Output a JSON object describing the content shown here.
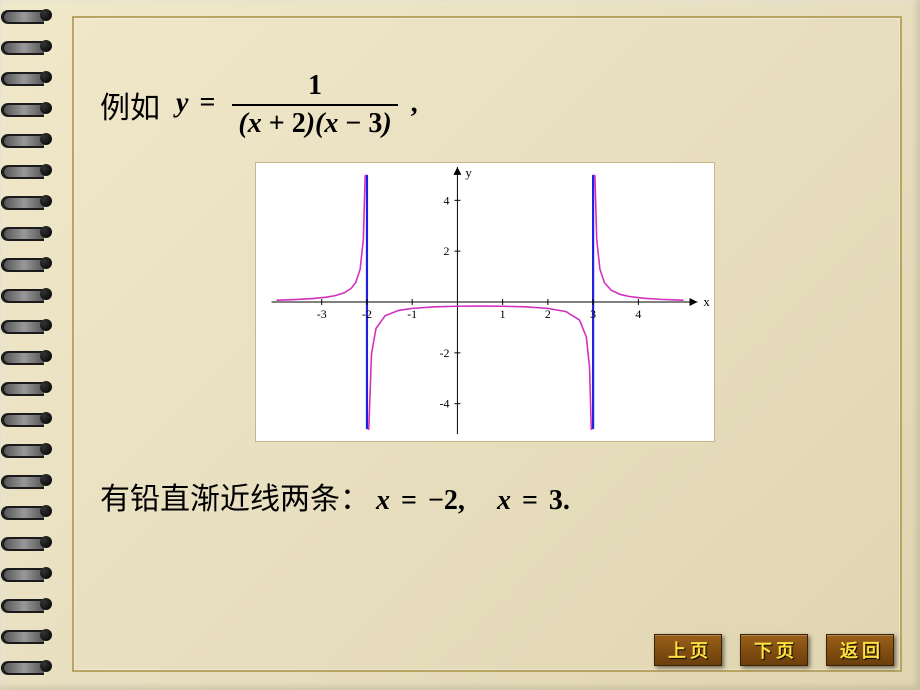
{
  "header": {
    "example_label": "例如",
    "lhs": "y",
    "eq": "=",
    "numerator": "1",
    "den_a_var": "x",
    "den_a_op": "+",
    "den_a_num": "2",
    "den_b_var": "x",
    "den_b_op": "−",
    "den_b_num": "3",
    "trail": ","
  },
  "chart": {
    "type": "line",
    "background_color": "#ffffff",
    "axis_color": "#000000",
    "tick_color": "#000000",
    "curve_color": "#d030c0",
    "asymptote_color": "#2020e0",
    "x_label": "x",
    "y_label": "y",
    "xlim": [
      -4,
      5
    ],
    "ylim": [
      -5,
      5
    ],
    "xticks": [
      -3,
      -2,
      -1,
      1,
      2,
      3,
      4
    ],
    "yticks": [
      -4,
      -2,
      2,
      4
    ],
    "asymptotes_x": [
      -2,
      3
    ],
    "label_fontsize": 13,
    "tick_fontsize": 12,
    "line_width": 1.6,
    "asymptote_width": 2.2,
    "left_branch": [
      [
        -4.0,
        0.0714
      ],
      [
        -3.6,
        0.0947
      ],
      [
        -3.2,
        0.1344
      ],
      [
        -2.9,
        0.1883
      ],
      [
        -2.7,
        0.2506
      ],
      [
        -2.5,
        0.3636
      ],
      [
        -2.35,
        0.5333
      ],
      [
        -2.25,
        0.7619
      ],
      [
        -2.15,
        1.2945
      ],
      [
        -2.08,
        2.4606
      ],
      [
        -2.04,
        4.9603
      ],
      [
        -2.02,
        10.0
      ]
    ],
    "mid_branch": [
      [
        -1.98,
        -10.0
      ],
      [
        -1.96,
        -5.0403
      ],
      [
        -1.9,
        -2.0408
      ],
      [
        -1.8,
        -1.0417
      ],
      [
        -1.6,
        -0.5435
      ],
      [
        -1.3,
        -0.3322
      ],
      [
        -1.0,
        -0.25
      ],
      [
        -0.5,
        -0.1905
      ],
      [
        0.0,
        -0.1667
      ],
      [
        0.5,
        -0.16
      ],
      [
        1.0,
        -0.1667
      ],
      [
        1.5,
        -0.1905
      ],
      [
        2.0,
        -0.25
      ],
      [
        2.4,
        -0.3788
      ],
      [
        2.7,
        -0.7092
      ],
      [
        2.85,
        -1.3746
      ],
      [
        2.92,
        -2.5407
      ],
      [
        2.96,
        -5.0403
      ],
      [
        2.98,
        -10.0
      ]
    ],
    "right_branch": [
      [
        3.02,
        10.0
      ],
      [
        3.04,
        4.9603
      ],
      [
        3.08,
        2.4606
      ],
      [
        3.15,
        1.2945
      ],
      [
        3.25,
        0.7619
      ],
      [
        3.4,
        0.463
      ],
      [
        3.6,
        0.2976
      ],
      [
        3.8,
        0.2155
      ],
      [
        4.1,
        0.1491
      ],
      [
        4.5,
        0.1026
      ],
      [
        5.0,
        0.0714
      ]
    ]
  },
  "conclusion": {
    "text_cn": "有铅直渐近线两条：",
    "eq1_var": "x",
    "eq1_eq": "=",
    "eq1_val": "−2,",
    "eq2_var": "x",
    "eq2_eq": "=",
    "eq2_val": "3."
  },
  "nav": {
    "prev": "上页",
    "next": "下页",
    "back": "返回"
  },
  "spiral": {
    "count": 22,
    "start_top": 8,
    "gap": 31
  }
}
